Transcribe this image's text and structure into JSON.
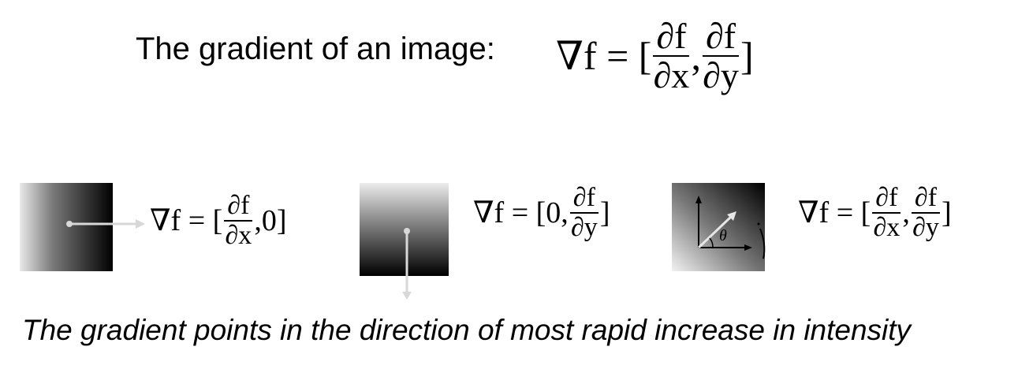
{
  "heading": "The gradient of an image:",
  "equations": {
    "main": {
      "lhs": "∇f = [",
      "num1": "∂f",
      "den1": "∂x",
      "sep": ",",
      "num2": "∂f",
      "den2": "∂y",
      "close": "]"
    },
    "horizontal": {
      "lhs": "∇f = [",
      "num": "∂f",
      "den": "∂x",
      "rest": ",0]"
    },
    "vertical": {
      "lhs": "∇f = [0,",
      "num": "∂f",
      "den": "∂y",
      "rest": "]"
    },
    "diagonal": {
      "lhs": "∇f = [",
      "num1": "∂f",
      "den1": "∂x",
      "sep": ",",
      "num2": "∂f",
      "den2": "∂y",
      "close": "]"
    }
  },
  "angle_label": "θ",
  "caption": "The gradient points in the direction of most rapid increase in intensity",
  "colors": {
    "arrow": "#d8d8d8",
    "text": "#000000",
    "background": "#ffffff"
  }
}
